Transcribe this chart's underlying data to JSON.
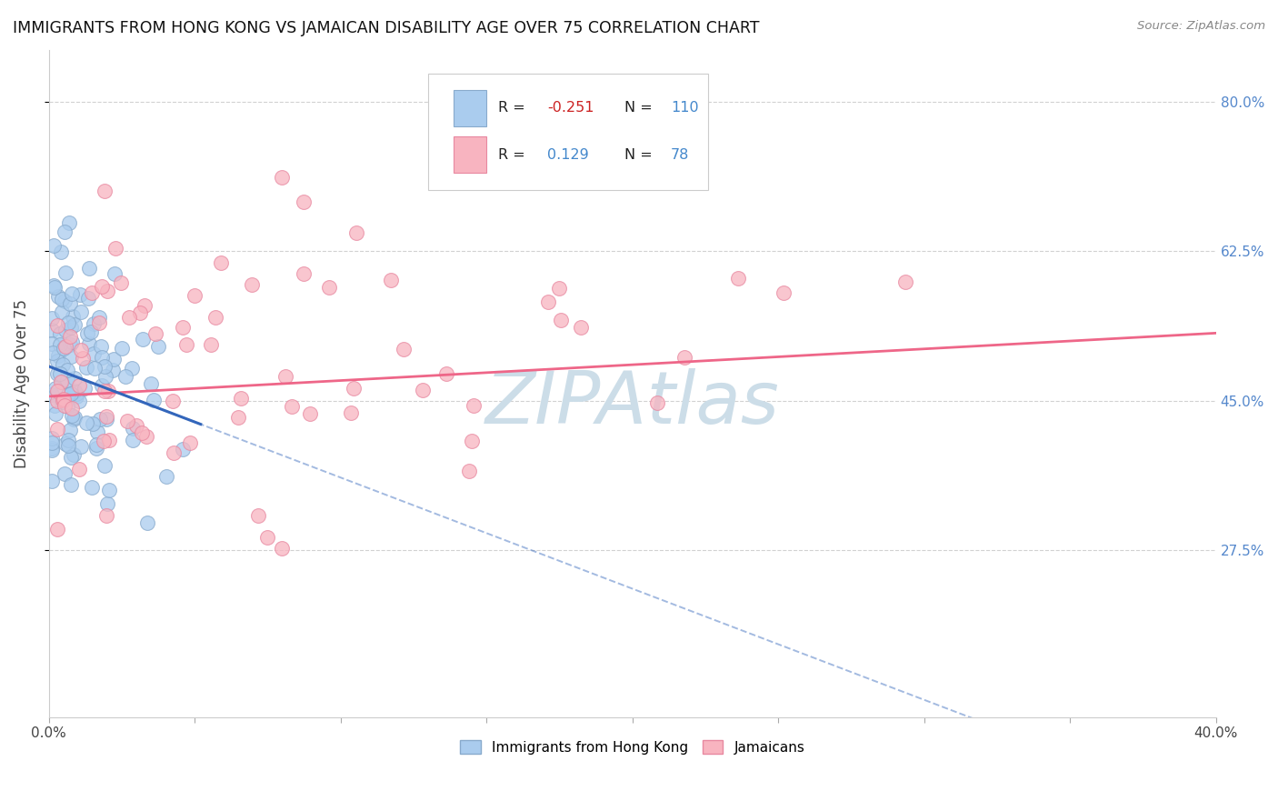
{
  "title": "IMMIGRANTS FROM HONG KONG VS JAMAICAN DISABILITY AGE OVER 75 CORRELATION CHART",
  "source": "Source: ZipAtlas.com",
  "ylabel": "Disability Age Over 75",
  "y_ticks_right": [
    0.275,
    0.45,
    0.625,
    0.8
  ],
  "y_tick_labels_right": [
    "27.5%",
    "45.0%",
    "62.5%",
    "80.0%"
  ],
  "hk_color": "#aaccee",
  "hk_edge_color": "#88aacc",
  "jam_color": "#f8b4c0",
  "jam_edge_color": "#e888a0",
  "hk_line_color": "#3366bb",
  "jam_line_color": "#ee6688",
  "watermark_color": "#ccdde8",
  "background_color": "#ffffff",
  "grid_color": "#cccccc",
  "xlim": [
    0.0,
    0.4
  ],
  "ylim": [
    0.08,
    0.86
  ]
}
